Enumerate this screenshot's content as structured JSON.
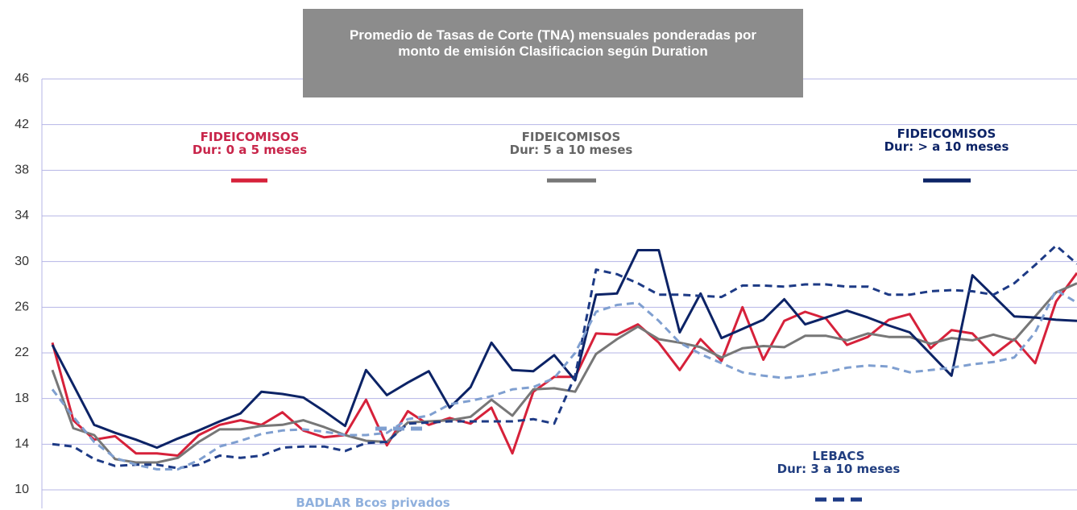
{
  "chart_data": {
    "type": "line",
    "title": "Promedio de Tasas de Corte (TNA) mensuales ponderadas por monto de emisión Clasificacion según Duration",
    "categories": [
      null,
      null,
      null,
      null,
      null,
      null,
      null,
      null,
      null,
      null,
      null,
      null,
      null,
      null,
      null,
      null,
      null,
      null,
      null,
      null,
      null,
      null,
      null,
      null,
      null,
      null,
      null,
      null,
      null,
      null,
      null,
      null,
      null,
      null,
      null,
      null,
      null,
      null,
      null,
      null,
      null,
      null,
      null,
      null,
      null,
      null,
      null,
      null,
      null,
      null
    ],
    "ylim": [
      10,
      46
    ],
    "yticks": [
      10,
      14,
      18,
      22,
      26,
      30,
      34,
      38,
      42,
      46
    ],
    "grid": true,
    "series": [
      {
        "name": "FIDEICOMISOS\nDur: 0 a 5 meses",
        "color": "#d6213a",
        "dash": false,
        "values": [
          22.9,
          16.1,
          14.4,
          14.7,
          13.2,
          13.2,
          13.0,
          14.8,
          15.7,
          16.1,
          15.7,
          16.8,
          15.2,
          14.6,
          14.8,
          17.9,
          13.9,
          16.9,
          15.7,
          16.3,
          15.8,
          17.2,
          13.2,
          18.6,
          19.9,
          19.9,
          23.7,
          23.6,
          24.5,
          22.9,
          20.5,
          23.2,
          21.3,
          26.0,
          21.4,
          24.8,
          25.6,
          25.0,
          22.7,
          23.4,
          24.9,
          25.4,
          22.4,
          24.0,
          23.7,
          21.8,
          23.2,
          21.1,
          26.5,
          29.0
        ]
      },
      {
        "name": "FIDEICOMISOS\nDur: 5 a 10 meses",
        "color": "#777777",
        "dash": false,
        "values": [
          20.5,
          15.4,
          14.8,
          12.7,
          12.4,
          12.4,
          12.8,
          14.2,
          15.3,
          15.3,
          15.6,
          15.7,
          16.1,
          15.5,
          14.8,
          14.3,
          14.2,
          15.9,
          16.0,
          16.1,
          16.4,
          17.9,
          16.5,
          18.8,
          18.9,
          18.6,
          21.9,
          23.2,
          24.3,
          23.2,
          22.9,
          22.5,
          21.6,
          22.4,
          22.6,
          22.5,
          23.5,
          23.5,
          23.1,
          23.7,
          23.4,
          23.4,
          22.8,
          23.3,
          23.1,
          23.6,
          23.1,
          25.2,
          27.3,
          28.1
        ]
      },
      {
        "name": "FIDEICOMISOS\nDur: > a 10 meses",
        "color": "#0c2366",
        "dash": false,
        "values": [
          22.7,
          19.2,
          15.7,
          15.0,
          14.4,
          13.7,
          14.5,
          15.2,
          16.0,
          16.7,
          18.6,
          18.4,
          18.1,
          16.9,
          15.6,
          20.5,
          18.3,
          19.4,
          20.4,
          17.2,
          19.0,
          22.9,
          20.5,
          20.4,
          21.8,
          19.6,
          27.1,
          27.2,
          31.0,
          31.0,
          23.8,
          27.2,
          23.3,
          24.1,
          24.9,
          26.7,
          24.5,
          25.1,
          25.7,
          25.1,
          24.4,
          23.8,
          21.9,
          20.0,
          28.8,
          27.0,
          25.2,
          25.1,
          24.9,
          24.8
        ]
      },
      {
        "name": "LEBACS\nDur: 3 a 10 meses",
        "color": "#1d3a85",
        "dash": true,
        "values": [
          14.0,
          13.8,
          12.7,
          12.1,
          12.2,
          12.2,
          11.9,
          12.2,
          13.0,
          12.8,
          13.0,
          13.7,
          13.8,
          13.8,
          13.4,
          14.1,
          14.2,
          15.8,
          15.9,
          16.0,
          16.0,
          16.0,
          16.0,
          16.2,
          15.8,
          20.0,
          29.3,
          28.9,
          28.1,
          27.1,
          27.1,
          27.0,
          26.9,
          27.9,
          27.9,
          27.8,
          28.0,
          28.0,
          27.8,
          27.8,
          27.1,
          27.1,
          27.4,
          27.5,
          27.4,
          27.1,
          28.1,
          29.7,
          31.4,
          29.8
        ]
      },
      {
        "name": "BADLAR Bcos privados",
        "color": "#7f9fd0",
        "dash": true,
        "values": [
          18.8,
          16.4,
          14.2,
          12.8,
          12.2,
          11.8,
          11.8,
          12.6,
          13.8,
          14.3,
          14.9,
          15.2,
          15.3,
          15.1,
          14.8,
          14.8,
          15.0,
          16.2,
          16.5,
          17.5,
          17.8,
          18.2,
          18.8,
          19.0,
          19.8,
          22.0,
          25.6,
          26.2,
          26.4,
          24.8,
          22.9,
          21.9,
          21.1,
          20.3,
          20.0,
          19.8,
          20.0,
          20.3,
          20.7,
          20.9,
          20.8,
          20.3,
          20.5,
          20.7,
          21.0,
          21.2,
          21.6,
          23.8,
          27.5,
          26.4
        ]
      }
    ]
  }
}
